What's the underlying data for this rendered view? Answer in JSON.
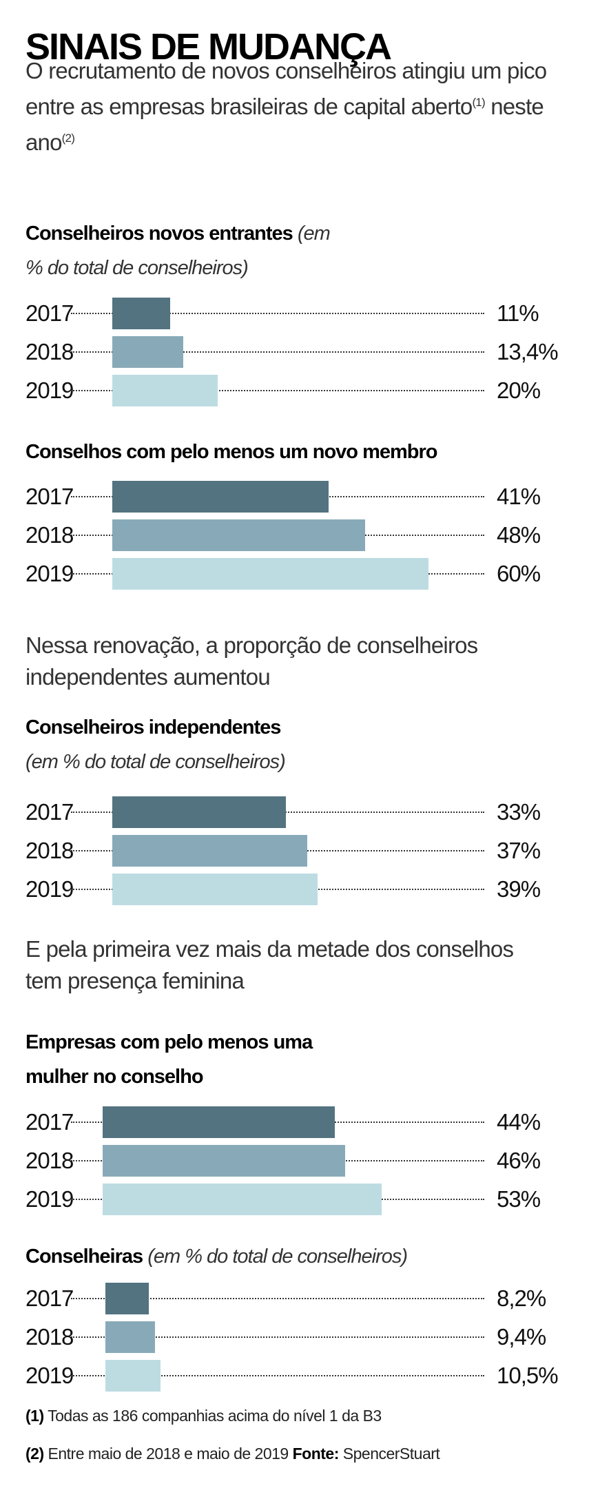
{
  "title": "SINAIS DE MUDANÇA",
  "intro": {
    "text": "O recrutamento de novos conselheiros atingiu um pico entre as empresas brasileiras de capital aberto",
    "sup1": "(1)",
    "mid": " neste ano",
    "sup2": "(2)"
  },
  "text2": "Nessa renovação, a proporção de conselheiros independentes aumentou",
  "text3": "E pela primeira vez mais da metade dos conselhos tem presença feminina",
  "colors": {
    "2017": "#537380",
    "2018": "#88aab8",
    "2019": "#bcdce2"
  },
  "chart_data": [
    {
      "type": "bar",
      "orientation": "horizontal",
      "title": "Conselheiros novos entrantes",
      "subtitle": "(em % do total de conselheiros)",
      "categories": [
        "2017",
        "2018",
        "2019"
      ],
      "values": [
        11,
        13.4,
        20
      ],
      "labels": [
        "11%",
        "13,4%",
        "20%"
      ],
      "unit": "%"
    },
    {
      "type": "bar",
      "orientation": "horizontal",
      "title": "Conselhos com pelo menos um novo membro",
      "subtitle": "",
      "categories": [
        "2017",
        "2018",
        "2019"
      ],
      "values": [
        41,
        48,
        60
      ],
      "labels": [
        "41%",
        "48%",
        "60%"
      ],
      "unit": "%"
    },
    {
      "type": "bar",
      "orientation": "horizontal",
      "title": "Conselheiros independentes",
      "subtitle": "(em % do total de conselheiros)",
      "categories": [
        "2017",
        "2018",
        "2019"
      ],
      "values": [
        33,
        37,
        39
      ],
      "labels": [
        "33%",
        "37%",
        "39%"
      ],
      "unit": "%"
    },
    {
      "type": "bar",
      "orientation": "horizontal",
      "title": "Empresas com pelo menos uma mulher no conselho",
      "subtitle": "",
      "categories": [
        "2017",
        "2018",
        "2019"
      ],
      "values": [
        44,
        46,
        53
      ],
      "labels": [
        "44%",
        "46%",
        "53%"
      ],
      "unit": "%"
    },
    {
      "type": "bar",
      "orientation": "horizontal",
      "title": "Conselheiras",
      "subtitle": "(em % do total de conselheiros)",
      "categories": [
        "2017",
        "2018",
        "2019"
      ],
      "values": [
        8.2,
        9.4,
        10.5
      ],
      "labels": [
        "8,2%",
        "9,4%",
        "10,5%"
      ],
      "unit": "%"
    }
  ],
  "footnotes": {
    "n1_mark": "(1)",
    "n1": "Todas as 186 companhias acima do nível 1 da B3",
    "n2_mark": "(2)",
    "n2": "Entre maio de 2018 e maio de 2019",
    "source_label": "Fonte:",
    "source": "SpencerStuart"
  }
}
